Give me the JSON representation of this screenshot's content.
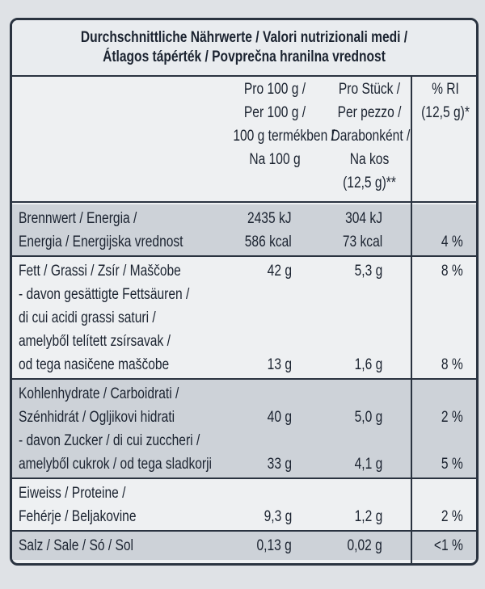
{
  "title": [
    "Durchschnittliche Nährwerte / Valori nutrizionali medi /",
    "Átlagos tápérték / Povprečna hranilna vrednost"
  ],
  "header": {
    "per100": [
      "Pro 100 g /",
      "Per 100 g /",
      "100 g termékben /",
      "Na 100 g"
    ],
    "per_piece": [
      "Pro Stück /",
      "Per pezzo /",
      "Darabonként /",
      "Na kos",
      "(12,5 g)**"
    ],
    "ri": [
      "% RI",
      "(12,5 g)*"
    ]
  },
  "rows": [
    [
      {
        "label": "Brennwert / Energia /",
        "per100": "2435 kJ",
        "per_piece": "304 kJ"
      },
      {
        "label": "Energia / Energijska vrednost",
        "per100": "586 kcal",
        "per_piece": "73 kcal",
        "ri": "4 %"
      }
    ],
    [
      {
        "label": "Fett / Grassi / Zsír / Maščobe",
        "per100": "42 g",
        "per_piece": "5,3 g",
        "ri": "8 %"
      },
      {
        "label": "- davon gesättigte Fettsäuren /"
      },
      {
        "label": "di cui acidi grassi saturi /"
      },
      {
        "label": "amelyből telített zsírsavak /"
      },
      {
        "label": "od tega nasičene maščobe",
        "per100": "13 g",
        "per_piece": "1,6 g",
        "ri": "8 %"
      }
    ],
    [
      {
        "label": "Kohlenhydrate / Carboidrati /"
      },
      {
        "label": "Szénhidrát / Ogljikovi hidrati",
        "per100": "40 g",
        "per_piece": "5,0 g",
        "ri": "2 %"
      },
      {
        "label": "- davon Zucker / di cui zuccheri /"
      },
      {
        "label": "amelyből cukrok / od tega sladkorji",
        "per100": "33 g",
        "per_piece": "4,1 g",
        "ri": "5 %"
      }
    ],
    [
      {
        "label": "Eiweiss / Proteine /"
      },
      {
        "label": "Fehérje / Beljakovine",
        "per100": "9,3 g",
        "per_piece": "1,2 g",
        "ri": "2 %"
      }
    ],
    [
      {
        "label": "Salz / Sale / Só / Sol",
        "per100": "0,13 g",
        "per_piece": "0,02 g",
        "ri": "<1 %"
      }
    ]
  ]
}
